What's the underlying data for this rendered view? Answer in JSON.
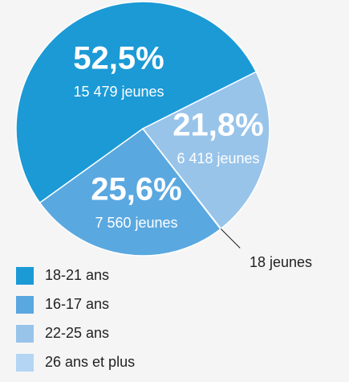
{
  "chart_data": {
    "type": "pie",
    "categories": [
      "18-21 ans",
      "16-17 ans",
      "22-25 ans",
      "26 ans et plus"
    ],
    "values": [
      52.5,
      25.6,
      21.8,
      0.06
    ],
    "value_labels": [
      "52,5%",
      "25,6%",
      "21,8%",
      null
    ],
    "count_labels": [
      "15 479 jeunes",
      "7 560 jeunes",
      "6 418 jeunes",
      "18 jeunes"
    ],
    "colors": [
      "#1b9ad6",
      "#5aa8e0",
      "#98c4ea",
      "#b4d5f3"
    ],
    "legend": "bottom-left"
  }
}
